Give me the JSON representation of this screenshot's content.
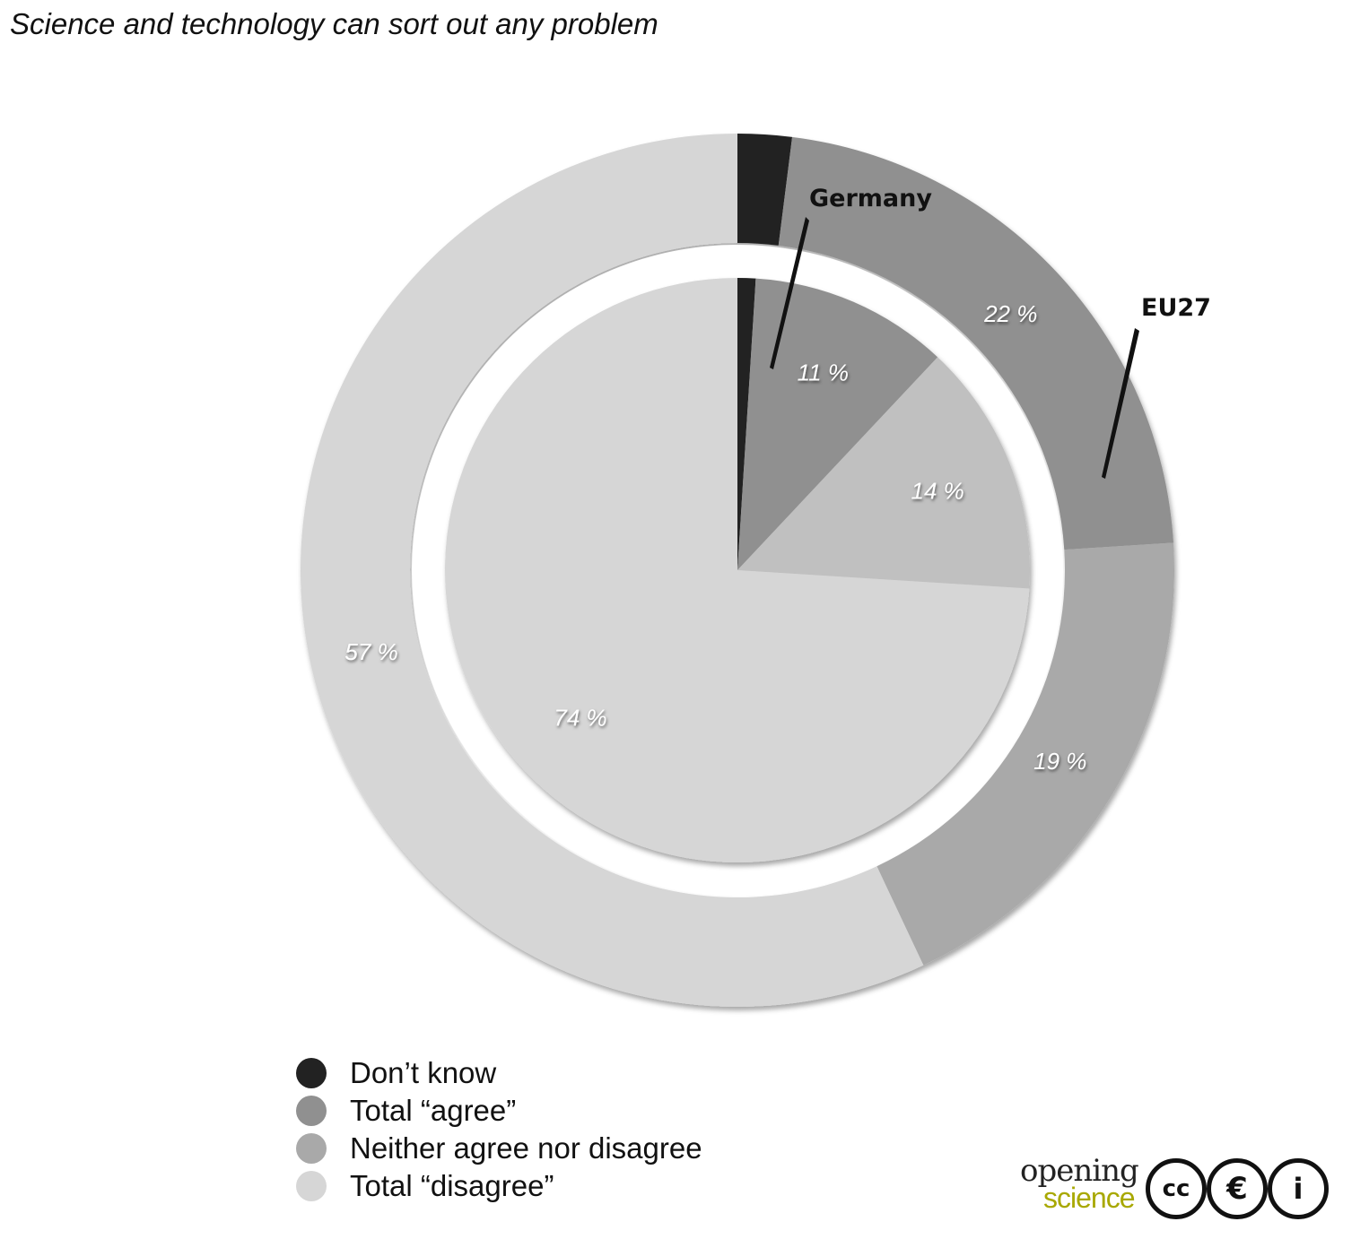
{
  "chart_data": {
    "type": "pie",
    "title": "Science and technology can sort out any problem",
    "categories": [
      "Don’t know",
      "Total “agree”",
      "Neither agree nor disagree",
      "Total “disagree”"
    ],
    "colors": [
      "#222222",
      "#909090",
      "#a9a9a9",
      "#d6d6d6"
    ],
    "series": [
      {
        "name": "EU27",
        "ring": "outer",
        "values": [
          2,
          22,
          19,
          57
        ],
        "labels": [
          "",
          "22 %",
          "19 %",
          "57 %"
        ]
      },
      {
        "name": "Germany",
        "ring": "inner",
        "values": [
          1,
          11,
          14,
          74
        ],
        "labels": [
          "",
          "11 %",
          "14 %",
          "74 %"
        ]
      }
    ],
    "inner_colors": [
      "#222222",
      "#909090",
      "#c0c0c0",
      "#d6d6d6"
    ],
    "legend_position": "bottom-left"
  },
  "logo": {
    "word1": "opening",
    "word2": "science",
    "badges": [
      "cc",
      "€",
      "i"
    ]
  }
}
